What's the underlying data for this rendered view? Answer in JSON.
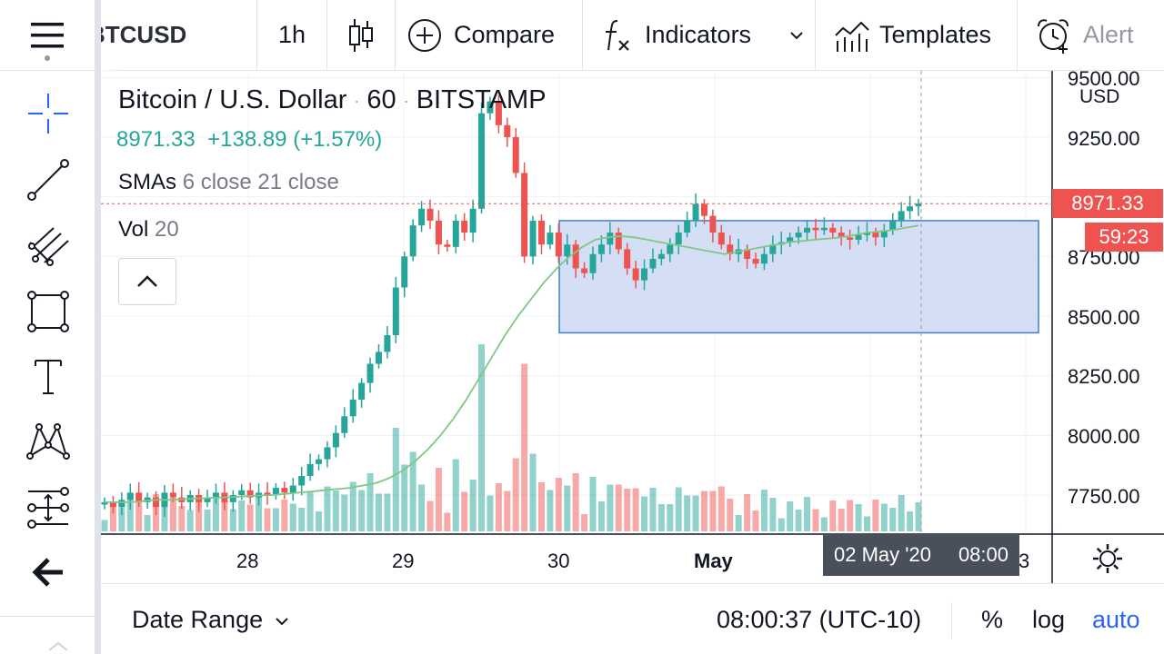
{
  "toolbar": {
    "symbol": "BTCUSD",
    "interval": "1h",
    "compare_label": "Compare",
    "indicators_label": "Indicators",
    "templates_label": "Templates",
    "alert_label": "Alert"
  },
  "legend": {
    "title": "Bitcoin / U.S. Dollar",
    "interval": "60",
    "exchange": "BITSTAMP",
    "last_price": "8971.33",
    "change": "+138.89 (+1.57%)",
    "sma_label": "SMAs",
    "sma_params": "6 close 21 close",
    "vol_label": "Vol",
    "vol_param": "20"
  },
  "price_scale": {
    "currency": "USD",
    "labels": [
      "9500.00",
      "9250.00",
      "8750.00",
      "8500.00",
      "8250.00",
      "8000.00",
      "7750.00"
    ],
    "current_price": "8971.33",
    "countdown": "59:23"
  },
  "time_scale": {
    "labels": [
      "28",
      "29",
      "30",
      "May",
      "3"
    ],
    "crosshair_date": "02 May '20",
    "crosshair_time": "08:00"
  },
  "bottom_bar": {
    "date_range_label": "Date Range",
    "clock": "08:00:37 (UTC-10)",
    "percent_label": "%",
    "log_label": "log",
    "auto_label": "auto"
  },
  "colors": {
    "up": "#26a69a",
    "down": "#ef5350",
    "sma": "#81c784",
    "rect_fill": "#cfdcf4",
    "rect_stroke": "#3f7dd0",
    "accent": "#2962ff"
  },
  "chart_data": {
    "type": "candlestick",
    "symbol": "BTCUSD",
    "y_range": [
      7600,
      9550
    ],
    "x_labels": [
      "28",
      "29",
      "30",
      "May",
      "3"
    ],
    "close_series": [
      7720,
      7700,
      7730,
      7760,
      7720,
      7740,
      7700,
      7760,
      7740,
      7720,
      7750,
      7720,
      7740,
      7760,
      7720,
      7750,
      7770,
      7740,
      7760,
      7750,
      7780,
      7760,
      7790,
      7830,
      7880,
      7900,
      7950,
      8010,
      8080,
      8150,
      8220,
      8300,
      8350,
      8420,
      8620,
      8750,
      8880,
      8950,
      8900,
      8800,
      8790,
      8900,
      8850,
      8950,
      9350,
      9400,
      9300,
      9250,
      9100,
      8750,
      8900,
      8800,
      8850,
      8750,
      8800,
      8700,
      8680,
      8760,
      8800,
      8850,
      8780,
      8700,
      8650,
      8700,
      8740,
      8760,
      8800,
      8850,
      8900,
      8970,
      8920,
      8850,
      8800,
      8760,
      8780,
      8740,
      8720,
      8760,
      8800,
      8810,
      8830,
      8850,
      8870,
      8860,
      8870,
      8850,
      8830,
      8820,
      8840,
      8850,
      8830,
      8860,
      8900,
      8940,
      8960,
      8971
    ],
    "sma21_series": [
      7720,
      7720,
      7720,
      7725,
      7730,
      7730,
      7732,
      7735,
      7738,
      7740,
      7742,
      7745,
      7748,
      7750,
      7755,
      7760,
      7765,
      7770,
      7775,
      7780,
      7790,
      7800,
      7820,
      7850,
      7890,
      7940,
      8000,
      8070,
      8150,
      8240,
      8330,
      8420,
      8500,
      8570,
      8640,
      8700,
      8750,
      8790,
      8820,
      8830,
      8835,
      8830,
      8820,
      8810,
      8800,
      8790,
      8780,
      8770,
      8760,
      8770,
      8780,
      8790,
      8800,
      8810,
      8815,
      8820,
      8825,
      8830,
      8840,
      8850,
      8855,
      8860,
      8870,
      8880
    ],
    "volume_scale": "relative",
    "rectangle": {
      "price_top": 8900,
      "price_bottom": 8430
    }
  }
}
